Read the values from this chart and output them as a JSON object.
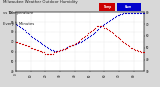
{
  "title": "Milwaukee Weather Outdoor Humidity vs Temperature Every 5 Minutes",
  "title_parts": [
    "Milwaukee Weather Outdoor Humidity",
    "vs Temperature",
    "Every 5 Minutes"
  ],
  "background_color": "#d8d8d8",
  "plot_bg_color": "#ffffff",
  "grid_color": "#bbbbbb",
  "humidity_color": "#0000cc",
  "temp_color": "#cc0000",
  "legend_red_label": "Temp",
  "legend_blue_label": "Hum",
  "humidity_x": [
    0,
    1,
    2,
    3,
    4,
    5,
    6,
    7,
    8,
    9,
    10,
    11,
    12,
    13,
    14,
    15,
    16,
    17,
    18,
    19,
    20,
    21,
    22,
    23,
    24,
    25,
    26,
    27,
    28,
    29,
    30,
    31,
    32,
    33,
    34,
    35,
    36,
    37,
    38,
    39,
    40,
    41,
    42,
    43,
    44,
    45,
    46,
    47,
    48,
    49,
    50,
    51,
    52,
    53,
    54,
    55,
    56,
    57,
    58,
    59,
    60,
    61,
    62,
    63,
    64,
    65,
    66,
    67,
    68,
    69,
    70,
    71,
    72,
    73,
    74,
    75,
    76,
    77,
    78,
    79,
    80,
    81,
    82,
    83,
    84,
    85,
    86,
    87
  ],
  "humidity_y": [
    88,
    87,
    86,
    85,
    84,
    83,
    82,
    80,
    79,
    78,
    76,
    75,
    74,
    73,
    72,
    71,
    70,
    69,
    68,
    67,
    66,
    65,
    64,
    63,
    62,
    62,
    61,
    61,
    61,
    61,
    62,
    62,
    63,
    63,
    64,
    65,
    66,
    66,
    67,
    67,
    68,
    68,
    69,
    70,
    70,
    71,
    72,
    73,
    74,
    75,
    76,
    77,
    78,
    79,
    80,
    82,
    83,
    85,
    86,
    87,
    88,
    89,
    90,
    91,
    92,
    93,
    94,
    95,
    96,
    97,
    97,
    98,
    98,
    99,
    99,
    99,
    99,
    99,
    99,
    99,
    99,
    99,
    99,
    99,
    99,
    99,
    99,
    99
  ],
  "temp_x": [
    0,
    1,
    2,
    3,
    4,
    5,
    6,
    7,
    8,
    9,
    10,
    11,
    12,
    13,
    14,
    15,
    16,
    17,
    18,
    19,
    20,
    21,
    22,
    23,
    24,
    25,
    26,
    27,
    28,
    29,
    30,
    31,
    32,
    33,
    34,
    35,
    36,
    37,
    38,
    39,
    40,
    41,
    42,
    43,
    44,
    45,
    46,
    47,
    48,
    49,
    50,
    51,
    52,
    53,
    54,
    55,
    56,
    57,
    58,
    59,
    60,
    61,
    62,
    63,
    64,
    65,
    66,
    67,
    68,
    69,
    70,
    71,
    72,
    73,
    74,
    75,
    76,
    77,
    78,
    79,
    80,
    81,
    82,
    83,
    84,
    85,
    86,
    87
  ],
  "temp_y": [
    55,
    55,
    54,
    54,
    53,
    53,
    52,
    52,
    51,
    51,
    50,
    50,
    49,
    49,
    48,
    48,
    47,
    47,
    46,
    46,
    45,
    45,
    45,
    45,
    45,
    45,
    46,
    46,
    47,
    47,
    48,
    48,
    49,
    49,
    50,
    50,
    51,
    51,
    52,
    52,
    53,
    54,
    55,
    56,
    57,
    58,
    59,
    60,
    61,
    62,
    63,
    64,
    65,
    66,
    67,
    68,
    68,
    68,
    68,
    68,
    67,
    67,
    66,
    65,
    64,
    63,
    62,
    61,
    60,
    59,
    58,
    57,
    56,
    55,
    54,
    53,
    52,
    51,
    50,
    50,
    49,
    48,
    48,
    47,
    47,
    46,
    46,
    46
  ],
  "xlim": [
    0,
    87
  ],
  "ylim_hum": [
    40,
    100
  ],
  "ylim_temp": [
    30,
    80
  ],
  "marker_size": 0.8,
  "tick_fontsize": 2.0,
  "title_fontsize": 2.8
}
